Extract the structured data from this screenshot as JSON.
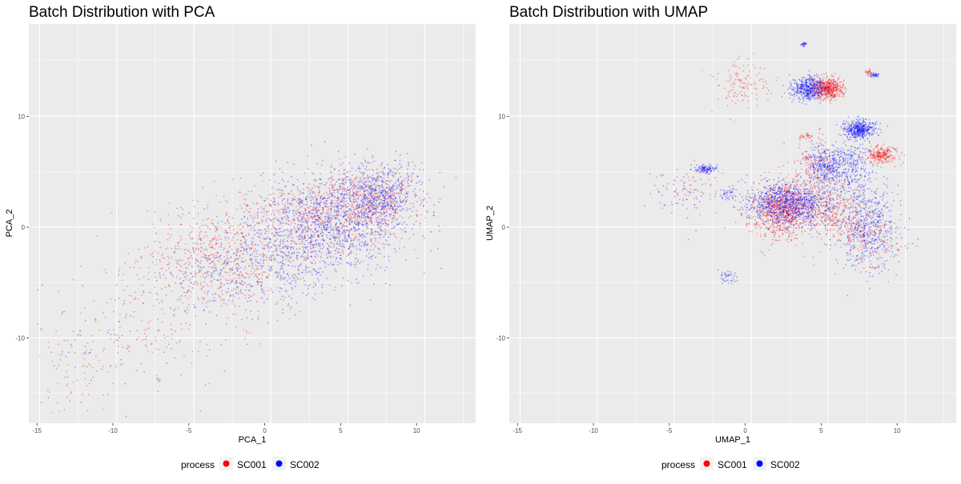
{
  "chart_data": [
    {
      "type": "scatter",
      "title": "Batch Distribution with PCA",
      "xlabel": "PCA_1",
      "ylabel": "PCA_2",
      "xlim": [
        -15.7,
        13.3
      ],
      "ylim": [
        -17.7,
        18.3
      ],
      "x_ticks": [
        -15,
        -10,
        -5,
        0,
        5,
        10
      ],
      "x_tick_labels": [
        "-15",
        "-10",
        "-5",
        "0",
        "5",
        "10"
      ],
      "y_ticks": [
        -10,
        0,
        10
      ],
      "y_tick_labels": [
        "-10",
        "0",
        "10"
      ],
      "legend": {
        "title": "process",
        "position": "bottom",
        "items": [
          {
            "label": "SC001",
            "color": "#ff0000"
          },
          {
            "label": "SC002",
            "color": "#0000ff"
          }
        ]
      },
      "series": [
        {
          "name": "SC001",
          "color": "#ff0000",
          "clusters": [
            {
              "cx": -3.0,
              "cy": -3.0,
              "sx": 2.6,
              "sy": 2.4,
              "n": 620
            },
            {
              "cx": 3.5,
              "cy": 1.0,
              "sx": 2.4,
              "sy": 2.0,
              "n": 650
            },
            {
              "cx": 7.0,
              "cy": 2.5,
              "sx": 1.6,
              "sy": 1.4,
              "n": 360
            },
            {
              "cx": -8.5,
              "cy": -8.0,
              "sx": 2.8,
              "sy": 3.2,
              "n": 140
            },
            {
              "cx": -12.5,
              "cy": -13.0,
              "sx": 1.3,
              "sy": 1.8,
              "n": 60
            }
          ]
        },
        {
          "name": "SC002",
          "color": "#0000ff",
          "clusters": [
            {
              "cx": 4.2,
              "cy": 0.5,
              "sx": 2.3,
              "sy": 2.2,
              "n": 1100
            },
            {
              "cx": 7.0,
              "cy": 3.0,
              "sx": 1.3,
              "sy": 1.3,
              "n": 520
            },
            {
              "cx": 0.5,
              "cy": -3.0,
              "sx": 2.4,
              "sy": 2.4,
              "n": 420
            },
            {
              "cx": -4.5,
              "cy": -4.0,
              "sx": 2.0,
              "sy": 2.0,
              "n": 200
            },
            {
              "cx": -10.5,
              "cy": -10.5,
              "sx": 2.6,
              "sy": 3.0,
              "n": 80
            }
          ]
        }
      ]
    },
    {
      "type": "scatter",
      "title": "Batch Distribution with UMAP",
      "xlabel": "UMAP_1",
      "ylabel": "UMAP_2",
      "xlim": [
        -15.7,
        13.3
      ],
      "ylim": [
        -17.7,
        18.3
      ],
      "x_ticks": [
        -15,
        -10,
        -5,
        0,
        5,
        10
      ],
      "x_tick_labels": [
        "-15",
        "-10",
        "-5",
        "0",
        "5",
        "10"
      ],
      "y_ticks": [
        -10,
        0,
        10
      ],
      "y_tick_labels": [
        "-10",
        "0",
        "10"
      ],
      "legend": {
        "title": "process",
        "position": "bottom",
        "items": [
          {
            "label": "SC001",
            "color": "#ff0000"
          },
          {
            "label": "SC002",
            "color": "#0000ff"
          }
        ]
      },
      "series": [
        {
          "name": "SC001",
          "color": "#ff0000",
          "clusters": [
            {
              "cx": 5.0,
              "cy": 12.5,
              "sx": 0.5,
              "sy": 0.5,
              "n": 500
            },
            {
              "cx": -0.7,
              "cy": 13.0,
              "sx": 0.9,
              "sy": 1.0,
              "n": 130
            },
            {
              "cx": 2.0,
              "cy": 1.5,
              "sx": 1.0,
              "sy": 1.3,
              "n": 800
            },
            {
              "cx": 8.5,
              "cy": 6.5,
              "sx": 0.5,
              "sy": 0.4,
              "n": 260
            },
            {
              "cx": 5.5,
              "cy": 1.5,
              "sx": 1.0,
              "sy": 1.2,
              "n": 300
            },
            {
              "cx": 7.5,
              "cy": -1.0,
              "sx": 1.0,
              "sy": 1.2,
              "n": 200
            },
            {
              "cx": 4.0,
              "cy": 5.0,
              "sx": 0.8,
              "sy": 1.3,
              "n": 200
            },
            {
              "cx": -4.0,
              "cy": 3.5,
              "sx": 1.0,
              "sy": 1.2,
              "n": 60
            },
            {
              "cx": 3.5,
              "cy": 8.2,
              "sx": 0.2,
              "sy": 0.15,
              "n": 30
            },
            {
              "cx": 7.6,
              "cy": 14.0,
              "sx": 0.1,
              "sy": 0.15,
              "n": 25
            }
          ]
        },
        {
          "name": "SC002",
          "color": "#0000ff",
          "clusters": [
            {
              "cx": 3.7,
              "cy": 12.5,
              "sx": 0.6,
              "sy": 0.5,
              "n": 500
            },
            {
              "cx": 2.5,
              "cy": 2.0,
              "sx": 1.4,
              "sy": 1.0,
              "n": 1100
            },
            {
              "cx": 7.0,
              "cy": 8.8,
              "sx": 0.5,
              "sy": 0.4,
              "n": 450
            },
            {
              "cx": 4.8,
              "cy": 5.5,
              "sx": 0.6,
              "sy": 0.9,
              "n": 380
            },
            {
              "cx": 6.5,
              "cy": 5.5,
              "sx": 0.6,
              "sy": 1.2,
              "n": 260
            },
            {
              "cx": 7.5,
              "cy": 0.0,
              "sx": 1.0,
              "sy": 2.0,
              "n": 560
            },
            {
              "cx": -3.0,
              "cy": 5.2,
              "sx": 0.4,
              "sy": 0.2,
              "n": 120
            },
            {
              "cx": -1.5,
              "cy": 3.0,
              "sx": 0.3,
              "sy": 0.3,
              "n": 40
            },
            {
              "cx": -1.5,
              "cy": -4.5,
              "sx": 0.3,
              "sy": 0.3,
              "n": 40
            },
            {
              "cx": 3.4,
              "cy": 16.5,
              "sx": 0.1,
              "sy": 0.1,
              "n": 25
            },
            {
              "cx": 8.0,
              "cy": 13.7,
              "sx": 0.15,
              "sy": 0.12,
              "n": 40
            },
            {
              "cx": -5.0,
              "cy": 3.0,
              "sx": 1.2,
              "sy": 1.0,
              "n": 50
            }
          ]
        }
      ]
    }
  ]
}
